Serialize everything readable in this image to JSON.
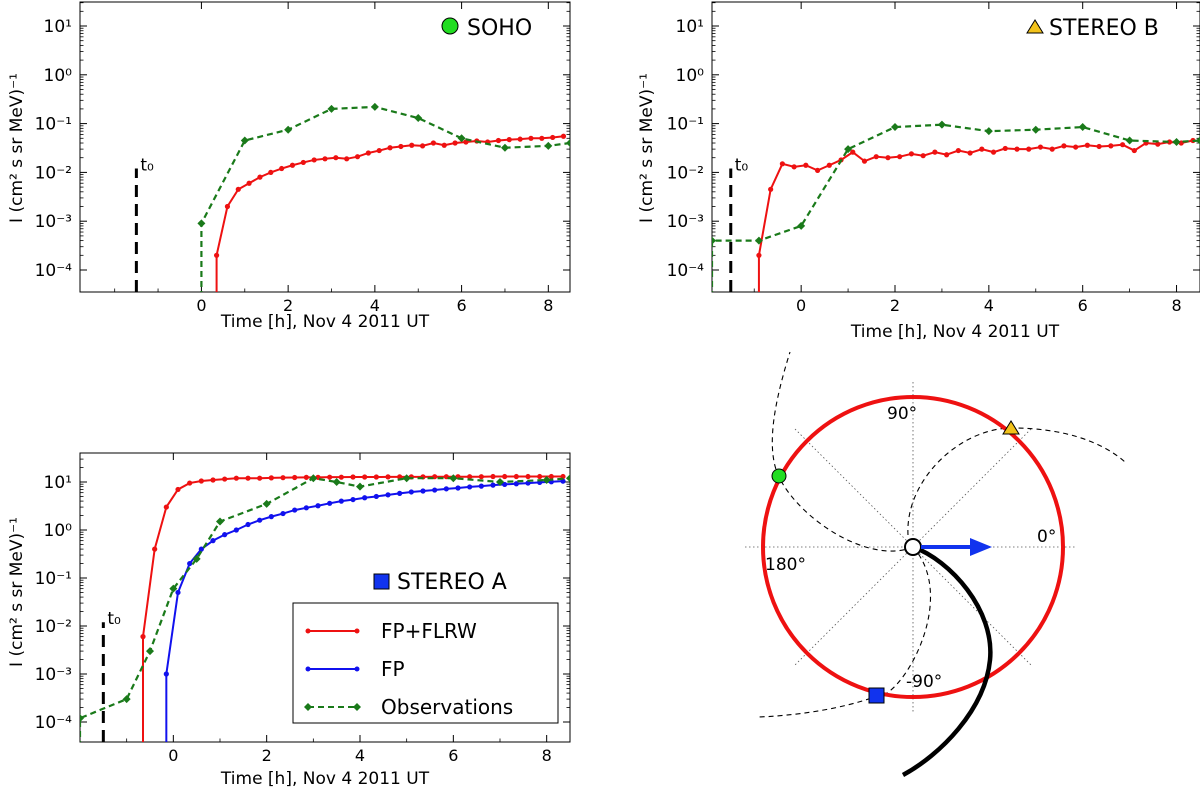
{
  "colors": {
    "fp_flrw": "#ee1111",
    "fp": "#1111ee",
    "obs": "#1a7a1a",
    "soho_marker": "#22dd22",
    "stereo_b_marker": "#f2c21b",
    "stereo_a_marker": "#1133ee"
  },
  "chart_data": [
    {
      "id": "soho",
      "type": "line",
      "title": "SOHO",
      "marker": "circle",
      "marker_color": "#22dd22",
      "xlabel": "Time [h], Nov 4 2011 UT",
      "ylabel": "I (cm² s sr MeV)⁻¹",
      "yscale": "log",
      "xlim": [
        -2.8,
        8.5
      ],
      "ylim": [
        4e-05,
        40
      ],
      "x_ticks": [
        0,
        2,
        4,
        6,
        8
      ],
      "y_ticks": [
        "10⁻⁴",
        "10⁻³",
        "10⁻²",
        "10⁻¹",
        "10⁰",
        "10¹"
      ],
      "t0": {
        "label": "t₀",
        "x": -1.5
      },
      "series": [
        {
          "key": "fp_flrw",
          "color": "#ee1111",
          "style": "solid",
          "x": [
            0.35,
            0.6,
            0.85,
            1.1,
            1.35,
            1.6,
            1.85,
            2.1,
            2.35,
            2.6,
            2.85,
            3.1,
            3.35,
            3.6,
            3.85,
            4.1,
            4.35,
            4.6,
            4.85,
            5.1,
            5.35,
            5.6,
            5.85,
            6.1,
            6.35,
            6.6,
            6.85,
            7.1,
            7.35,
            7.6,
            7.85,
            8.1,
            8.35
          ],
          "y": [
            0.0002,
            0.002,
            0.0045,
            0.006,
            0.008,
            0.01,
            0.012,
            0.014,
            0.016,
            0.018,
            0.019,
            0.02,
            0.019,
            0.021,
            0.025,
            0.028,
            0.032,
            0.034,
            0.036,
            0.035,
            0.04,
            0.036,
            0.04,
            0.042,
            0.044,
            0.042,
            0.045,
            0.047,
            0.048,
            0.05,
            0.05,
            0.052,
            0.055
          ]
        },
        {
          "key": "obs",
          "color": "#1a7a1a",
          "style": "dashed",
          "x": [
            0,
            1,
            2,
            3,
            4,
            5,
            6,
            7,
            8,
            8.5
          ],
          "y": [
            0.0009,
            0.045,
            0.075,
            0.2,
            0.22,
            0.13,
            0.05,
            0.032,
            0.035,
            0.04
          ]
        }
      ]
    },
    {
      "id": "stereo_b",
      "type": "line",
      "title": "STEREO B",
      "marker": "triangle",
      "marker_color": "#f2c21b",
      "xlabel": "Time [h], Nov 4 2011 UT",
      "ylabel": "I (cm² s sr MeV)⁻¹",
      "yscale": "log",
      "xlim": [
        -1.9,
        8.5
      ],
      "ylim": [
        4e-05,
        40
      ],
      "x_ticks": [
        0,
        2,
        4,
        6,
        8
      ],
      "y_ticks": [
        "10⁻⁴",
        "10⁻³",
        "10⁻²",
        "10⁻¹",
        "10⁰",
        "10¹"
      ],
      "t0": {
        "label": "t₀",
        "x": -1.5
      },
      "series": [
        {
          "key": "fp_flrw",
          "color": "#ee1111",
          "style": "solid",
          "x": [
            -0.9,
            -0.65,
            -0.4,
            -0.15,
            0.1,
            0.35,
            0.6,
            0.85,
            1.1,
            1.35,
            1.6,
            1.85,
            2.1,
            2.35,
            2.6,
            2.85,
            3.1,
            3.35,
            3.6,
            3.85,
            4.1,
            4.35,
            4.6,
            4.85,
            5.1,
            5.35,
            5.6,
            5.85,
            6.1,
            6.35,
            6.6,
            6.85,
            7.1,
            7.35,
            7.6,
            7.85,
            8.1,
            8.35
          ],
          "y": [
            0.0002,
            0.0045,
            0.015,
            0.013,
            0.014,
            0.011,
            0.014,
            0.018,
            0.026,
            0.017,
            0.021,
            0.02,
            0.021,
            0.024,
            0.022,
            0.026,
            0.023,
            0.028,
            0.025,
            0.03,
            0.026,
            0.031,
            0.03,
            0.03,
            0.033,
            0.03,
            0.035,
            0.033,
            0.036,
            0.034,
            0.035,
            0.037,
            0.028,
            0.04,
            0.038,
            0.042,
            0.04,
            0.045
          ]
        },
        {
          "key": "obs",
          "color": "#1a7a1a",
          "style": "dashed",
          "x": [
            -1.9,
            -0.9,
            0,
            1,
            2,
            3,
            4,
            5,
            6,
            7,
            8,
            8.5
          ],
          "y": [
            0.0004,
            0.0004,
            0.0008,
            0.03,
            0.085,
            0.095,
            0.07,
            0.075,
            0.085,
            0.045,
            0.042,
            0.045
          ]
        }
      ]
    },
    {
      "id": "stereo_a",
      "type": "line",
      "title": "STEREO A",
      "marker": "square",
      "marker_color": "#1133ee",
      "xlabel": "Time [h], Nov 4 2011 UT",
      "ylabel": "I (cm² s sr MeV)⁻¹",
      "yscale": "log",
      "xlim": [
        -2.0,
        8.5
      ],
      "ylim": [
        5e-05,
        40
      ],
      "x_ticks": [
        0,
        2,
        4,
        6,
        8
      ],
      "y_ticks": [
        "10⁻⁴",
        "10⁻³",
        "10⁻²",
        "10⁻¹",
        "10⁰",
        "10¹"
      ],
      "t0": {
        "label": "t₀",
        "x": -1.5
      },
      "legend_position": "lower-right",
      "legend": [
        {
          "key": "fp_flrw",
          "label": "FP+FLRW",
          "color": "#ee1111",
          "style": "solid",
          "marker": "dot"
        },
        {
          "key": "fp",
          "label": "FP",
          "color": "#1111ee",
          "style": "solid",
          "marker": "dot"
        },
        {
          "key": "obs",
          "label": "Observations",
          "color": "#1a7a1a",
          "style": "dashed",
          "marker": "diamond"
        }
      ],
      "series": [
        {
          "key": "fp_flrw",
          "color": "#ee1111",
          "style": "solid",
          "x": [
            -0.65,
            -0.4,
            -0.15,
            0.1,
            0.35,
            0.6,
            0.85,
            1.1,
            1.35,
            1.6,
            1.85,
            2.1,
            2.35,
            2.6,
            2.85,
            3.1,
            3.35,
            3.6,
            3.85,
            4.1,
            4.35,
            4.6,
            4.85,
            5.1,
            5.35,
            5.6,
            5.85,
            6.1,
            6.35,
            6.6,
            6.85,
            7.1,
            7.35,
            7.6,
            7.85,
            8.1,
            8.35
          ],
          "y": [
            0.006,
            0.4,
            3,
            7,
            9.5,
            10.5,
            11,
            11.5,
            12,
            12,
            12,
            12.2,
            12.3,
            12.4,
            12.5,
            12.5,
            12.6,
            12.6,
            12.7,
            12.7,
            12.7,
            12.8,
            12.8,
            12.8,
            12.8,
            12.9,
            12.9,
            12.9,
            12.9,
            12.9,
            13,
            13,
            13,
            13,
            13,
            13,
            13
          ]
        },
        {
          "key": "fp",
          "color": "#1111ee",
          "style": "solid",
          "x": [
            -0.15,
            0.1,
            0.35,
            0.6,
            0.85,
            1.1,
            1.35,
            1.6,
            1.85,
            2.1,
            2.35,
            2.6,
            2.85,
            3.1,
            3.35,
            3.6,
            3.85,
            4.1,
            4.35,
            4.6,
            4.85,
            5.1,
            5.35,
            5.6,
            5.85,
            6.1,
            6.35,
            6.6,
            6.85,
            7.1,
            7.35,
            7.6,
            7.85,
            8.1,
            8.35
          ],
          "y": [
            0.001,
            0.05,
            0.2,
            0.4,
            0.6,
            0.8,
            1.0,
            1.3,
            1.6,
            1.9,
            2.2,
            2.6,
            2.9,
            3.2,
            3.6,
            4.0,
            4.3,
            4.7,
            5.0,
            5.4,
            5.8,
            6.2,
            6.5,
            6.8,
            7.2,
            7.5,
            7.9,
            8.2,
            8.6,
            8.9,
            9.2,
            9.5,
            9.8,
            10.1,
            10.4
          ]
        },
        {
          "key": "obs",
          "color": "#1a7a1a",
          "style": "dashed",
          "x": [
            -2.0,
            -1.0,
            -0.5,
            0,
            0.5,
            1,
            2,
            3,
            3.5,
            4,
            5,
            6,
            7,
            8,
            8.5
          ],
          "y": [
            0.00012,
            0.0003,
            0.003,
            0.06,
            0.25,
            1.5,
            3.5,
            12,
            10,
            8,
            12,
            12,
            10,
            11,
            12
          ]
        }
      ]
    }
  ],
  "diagram": {
    "angle_labels": [
      "90°",
      "0°",
      "180°",
      "-90°"
    ]
  }
}
